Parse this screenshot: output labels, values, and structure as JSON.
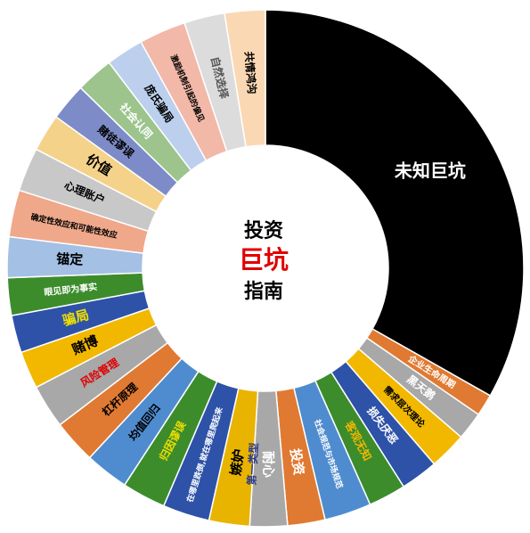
{
  "chart_data": {
    "type": "pie",
    "center_title": {
      "line1": "投资",
      "line2": "巨坑",
      "line3": "指南",
      "line2_color": "#e00000"
    },
    "segments": [
      {
        "label": "未知巨坑",
        "value": 34.0,
        "color": "#000000",
        "label_color": "#ffffff"
      },
      {
        "label": "企业生命周期",
        "value": 1.4,
        "color": "#e07a32",
        "label_color": "#ffffff"
      },
      {
        "label": "黑天鹅",
        "value": 1.8,
        "color": "#a8a8a8",
        "label_color": "#ffffff"
      },
      {
        "label": "需求层次理论",
        "value": 2.4,
        "color": "#f2b800",
        "label_color": "#000000"
      },
      {
        "label": "损失厌恶",
        "value": 2.4,
        "color": "#2d52a8",
        "label_color": "#ffffff"
      },
      {
        "label": "客观无知",
        "value": 2.4,
        "color": "#3c8c2c",
        "label_color": "#f2b800"
      },
      {
        "label": "社会规范与市场规范",
        "value": 3.0,
        "color": "#4f8ccf",
        "label_color": "#ffffff"
      },
      {
        "label": "投资",
        "value": 2.4,
        "color": "#e07a32",
        "label_color": "#ffffff"
      },
      {
        "label": "耐心",
        "value": 2.4,
        "color": "#a8a8a8",
        "label_color": "#ffffff"
      },
      {
        "label": "第一类型",
        "value": 0.0,
        "color": "#a8a8a8",
        "label_color": "#2d3a8c"
      },
      {
        "label": "嫉妒",
        "value": 2.6,
        "color": "#e8b400",
        "label_color": "#000000"
      },
      {
        "label": "在哪里跌倒,就在哪里爬起来",
        "value": 3.0,
        "color": "#2d52a8",
        "label_color": "#ffffff"
      },
      {
        "label": "归因谬误",
        "value": 2.8,
        "color": "#3c8c2c",
        "label_color": "#f2e000"
      },
      {
        "label": "均值回归",
        "value": 2.8,
        "color": "#4f8ccf",
        "label_color": "#000000"
      },
      {
        "label": "杠杆原理",
        "value": 2.8,
        "color": "#e07a32",
        "label_color": "#000000"
      },
      {
        "label": "风险管理",
        "value": 2.8,
        "color": "#a8a8a8",
        "label_color": "#e00000"
      },
      {
        "label": "赌博",
        "value": 2.4,
        "color": "#f2b800",
        "label_color": "#000000"
      },
      {
        "label": "骗局",
        "value": 2.4,
        "color": "#2d52a8",
        "label_color": "#f2e000"
      },
      {
        "label": "眼见即为事实",
        "value": 2.4,
        "color": "#3c8c2c",
        "label_color": "#ffffff"
      },
      {
        "label": "锚定",
        "value": 2.6,
        "color": "#a4c0e4",
        "label_color": "#000000"
      },
      {
        "label": "确定性效应和可能性效应",
        "value": 3.0,
        "color": "#f0a88a",
        "label_color": "#000000"
      },
      {
        "label": "心理账户",
        "value": 2.8,
        "color": "#c8c8c8",
        "label_color": "#000000"
      },
      {
        "label": "价值",
        "value": 2.4,
        "color": "#f5d28a",
        "label_color": "#000000"
      },
      {
        "label": "赌徒谬误",
        "value": 2.4,
        "color": "#7d8cc8",
        "label_color": "#000000"
      },
      {
        "label": "社会认同",
        "value": 2.4,
        "color": "#9cc48c",
        "label_color": "#ffffff"
      },
      {
        "label": "庞氏骗局",
        "value": 2.4,
        "color": "#bcd0ee",
        "label_color": "#000000"
      },
      {
        "label": "激励机制引起的偏见",
        "value": 3.0,
        "color": "#f2b8a8",
        "label_color": "#000000"
      },
      {
        "label": "自然选择",
        "value": 2.6,
        "color": "#dcdcdc",
        "label_color": "#555555"
      },
      {
        "label": "共情鸿沟",
        "value": 2.6,
        "color": "#fbd8b4",
        "label_color": "#000000"
      }
    ]
  }
}
